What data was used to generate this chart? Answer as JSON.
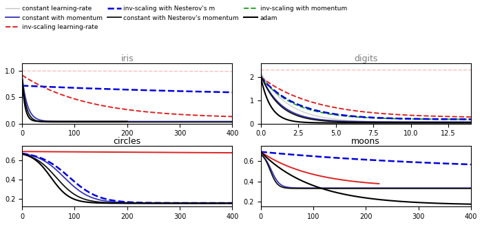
{
  "figsize": [
    7.0,
    3.27
  ],
  "dpi": 100,
  "line_styles": {
    "constant_lr": {
      "color": "#aaaaaa",
      "ls": "-",
      "lw": 1.0,
      "alpha": 0.6
    },
    "constant_mom": {
      "color": "#3333bb",
      "ls": "-",
      "lw": 1.3
    },
    "constant_nes": {
      "color": "#111111",
      "ls": "-",
      "lw": 1.3
    },
    "inv_lr": {
      "color": "#dd2222",
      "ls": "--",
      "lw": 1.4
    },
    "inv_mom": {
      "color": "#22aa22",
      "ls": "--",
      "lw": 1.4
    },
    "inv_nes": {
      "color": "#0000dd",
      "ls": "--",
      "lw": 1.8
    },
    "adam": {
      "color": "#000000",
      "ls": "-",
      "lw": 1.5
    }
  },
  "legend_labels": [
    "constant learning-rate",
    "constant with momentum",
    "constant with Nesterov's momentum",
    "inv-scaling learning-rate",
    "inv-scaling with momentum",
    "inv-scaling with Nesterov's m",
    "adam"
  ]
}
